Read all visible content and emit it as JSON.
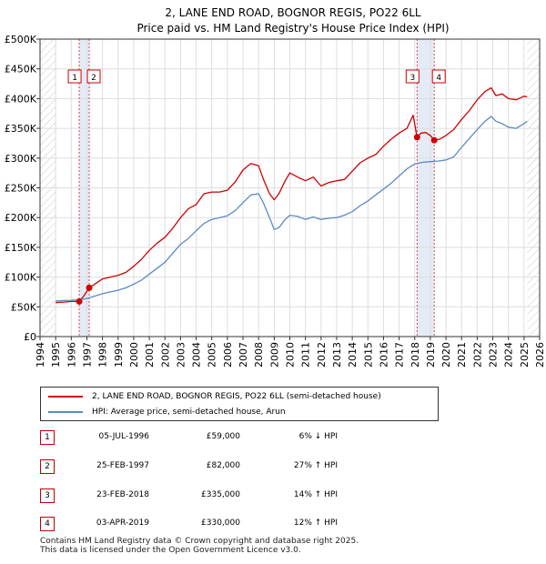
{
  "chart_data": {
    "type": "line",
    "title": "2, LANE END ROAD, BOGNOR REGIS, PO22 6LL",
    "subtitle": "Price paid vs. HM Land Registry's House Price Index (HPI)",
    "xlim": [
      1994,
      2026
    ],
    "ylim": [
      0,
      500000
    ],
    "xticks": [
      1994,
      1995,
      1996,
      1997,
      1998,
      1999,
      2000,
      2001,
      2002,
      2003,
      2004,
      2005,
      2006,
      2007,
      2008,
      2009,
      2010,
      2011,
      2012,
      2013,
      2014,
      2015,
      2016,
      2017,
      2018,
      2019,
      2020,
      2021,
      2022,
      2023,
      2024,
      2025,
      2026
    ],
    "xtick_labels": [
      "1994",
      "1995",
      "1996",
      "1997",
      "1998",
      "1999",
      "2000",
      "2001",
      "2002",
      "2003",
      "2004",
      "2005",
      "2006",
      "2007",
      "2008",
      "2009",
      "2010",
      "2011",
      "2012",
      "2013",
      "2014",
      "2015",
      "2016",
      "2017",
      "2018",
      "2019",
      "2020",
      "2021",
      "2022",
      "2023",
      "2024",
      "2025",
      "2026"
    ],
    "yticks": [
      0,
      50000,
      100000,
      150000,
      200000,
      250000,
      300000,
      350000,
      400000,
      450000,
      500000
    ],
    "ytick_labels": [
      "£0",
      "£50K",
      "£100K",
      "£150K",
      "£200K",
      "£250K",
      "£300K",
      "£350K",
      "£400K",
      "£450K",
      "£500K"
    ],
    "series": [
      {
        "name": "2, LANE END ROAD, BOGNOR REGIS, PO22 6LL (semi-detached house)",
        "color": "#cc0000",
        "x": [
          1995.0,
          1995.5,
          1996.0,
          1996.51,
          1996.8,
          1997.15,
          1997.5,
          1998.0,
          1998.5,
          1999.0,
          1999.5,
          2000.0,
          2000.5,
          2001.0,
          2001.5,
          2002.0,
          2002.5,
          2003.0,
          2003.5,
          2004.0,
          2004.5,
          2005.0,
          2005.5,
          2006.0,
          2006.5,
          2007.0,
          2007.5,
          2008.0,
          2008.3,
          2008.7,
          2009.0,
          2009.3,
          2009.7,
          2010.0,
          2010.5,
          2011.0,
          2011.5,
          2012.0,
          2012.5,
          2013.0,
          2013.5,
          2014.0,
          2014.5,
          2015.0,
          2015.5,
          2016.0,
          2016.5,
          2017.0,
          2017.5,
          2017.9,
          2018.15,
          2018.4,
          2018.7,
          2019.0,
          2019.25,
          2019.6,
          2020.0,
          2020.5,
          2021.0,
          2021.5,
          2022.0,
          2022.5,
          2022.9,
          2023.2,
          2023.6,
          2024.0,
          2024.5,
          2025.0,
          2025.2
        ],
        "values": [
          57000,
          58000,
          59000,
          59000,
          68000,
          82000,
          88000,
          97000,
          100000,
          103000,
          108000,
          118000,
          130000,
          145000,
          157000,
          167000,
          182000,
          200000,
          215000,
          222000,
          240000,
          243000,
          243000,
          246000,
          260000,
          280000,
          291000,
          287000,
          265000,
          240000,
          230000,
          240000,
          262000,
          275000,
          268000,
          262000,
          268000,
          253000,
          259000,
          262000,
          264000,
          278000,
          292000,
          300000,
          306000,
          320000,
          332000,
          342000,
          350000,
          372000,
          335000,
          342000,
          343000,
          338000,
          330000,
          332000,
          338000,
          348000,
          365000,
          380000,
          398000,
          412000,
          418000,
          405000,
          408000,
          400000,
          398000,
          404000,
          403000
        ]
      },
      {
        "name": "HPI: Average price, semi-detached house, Arun",
        "color": "#5b8ac6",
        "x": [
          1995.0,
          1995.5,
          1996.0,
          1996.5,
          1997.0,
          1997.5,
          1998.0,
          1998.5,
          1999.0,
          1999.5,
          2000.0,
          2000.5,
          2001.0,
          2001.5,
          2002.0,
          2002.5,
          2003.0,
          2003.5,
          2004.0,
          2004.5,
          2005.0,
          2005.5,
          2006.0,
          2006.5,
          2007.0,
          2007.5,
          2008.0,
          2008.3,
          2008.7,
          2009.0,
          2009.3,
          2009.7,
          2010.0,
          2010.5,
          2011.0,
          2011.5,
          2012.0,
          2012.5,
          2013.0,
          2013.5,
          2014.0,
          2014.5,
          2015.0,
          2015.5,
          2016.0,
          2016.5,
          2017.0,
          2017.5,
          2018.0,
          2018.5,
          2019.0,
          2019.5,
          2020.0,
          2020.5,
          2021.0,
          2021.5,
          2022.0,
          2022.5,
          2022.9,
          2023.2,
          2023.6,
          2024.0,
          2024.5,
          2025.0,
          2025.2
        ],
        "values": [
          60000,
          60500,
          61000,
          62000,
          64000,
          68000,
          72000,
          75000,
          78000,
          82000,
          88000,
          95000,
          105000,
          115000,
          125000,
          140000,
          155000,
          165000,
          178000,
          190000,
          197000,
          200000,
          203000,
          212000,
          225000,
          238000,
          240000,
          225000,
          200000,
          180000,
          183000,
          197000,
          204000,
          202000,
          197000,
          201000,
          197000,
          199000,
          200000,
          204000,
          210000,
          220000,
          228000,
          238000,
          248000,
          258000,
          270000,
          282000,
          290000,
          293000,
          294000,
          295000,
          297000,
          302000,
          318000,
          333000,
          348000,
          362000,
          370000,
          362000,
          358000,
          352000,
          350000,
          358000,
          362000
        ]
      }
    ],
    "sales": [
      {
        "label": "1",
        "year": 1996.51,
        "price": 59000
      },
      {
        "label": "2",
        "year": 1997.15,
        "price": 82000
      },
      {
        "label": "3",
        "year": 2018.15,
        "price": 335000
      },
      {
        "label": "4",
        "year": 2019.25,
        "price": 330000
      }
    ],
    "shaded_ranges": [
      [
        1996.51,
        1997.15
      ],
      [
        2018.15,
        2019.25
      ]
    ],
    "hatched_ranges": [
      [
        1994,
        1995
      ],
      [
        2025.2,
        2026
      ]
    ],
    "grid": true
  },
  "legend": [
    {
      "label": "2, LANE END ROAD, BOGNOR REGIS, PO22 6LL (semi-detached house)",
      "color": "#cc0000"
    },
    {
      "label": "HPI: Average price, semi-detached house, Arun",
      "color": "#5b8ac6"
    }
  ],
  "transactions": [
    {
      "num": "1",
      "date": "05-JUL-1996",
      "price": "£59,000",
      "hpi": "6% ↓ HPI"
    },
    {
      "num": "2",
      "date": "25-FEB-1997",
      "price": "£82,000",
      "hpi": "27% ↑ HPI"
    },
    {
      "num": "3",
      "date": "23-FEB-2018",
      "price": "£335,000",
      "hpi": "14% ↑ HPI"
    },
    {
      "num": "4",
      "date": "03-APR-2019",
      "price": "£330,000",
      "hpi": "12% ↑ HPI"
    }
  ],
  "footer": {
    "line1": "Contains HM Land Registry data © Crown copyright and database right 2025.",
    "line2": "This data is licensed under the Open Government Licence v3.0."
  }
}
